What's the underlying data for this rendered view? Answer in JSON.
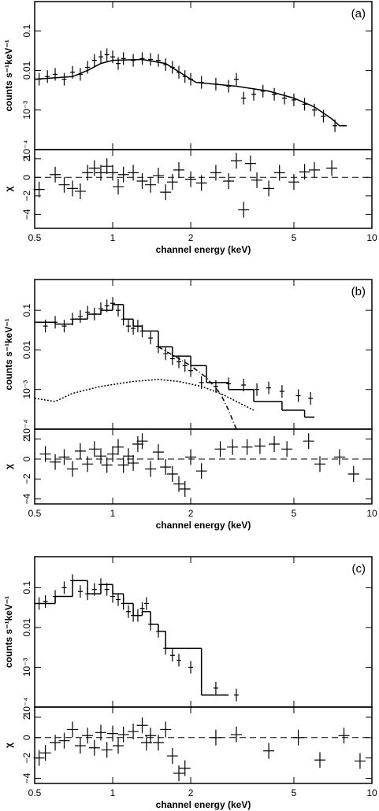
{
  "chart_data": [
    {
      "type": "spectrum",
      "annotation": "(a)",
      "ylabel": "counts s⁻¹keV⁻¹",
      "xlog": true,
      "ylog": true,
      "xlim": [
        0.5,
        10
      ],
      "ylim": [
        0.0001,
        0.55
      ],
      "xticks": [
        0.5,
        1,
        2,
        5,
        10
      ],
      "yticks": [
        {
          "value": 0.0001,
          "label": "10⁻⁴"
        },
        {
          "value": 0.001,
          "label": "10⁻³"
        },
        0.01,
        0.1
      ],
      "series": [
        {
          "style": "points",
          "color": "#000000",
          "x": [
            0.52,
            0.56,
            0.6,
            0.65,
            0.7,
            0.75,
            0.8,
            0.85,
            0.9,
            0.95,
            1.0,
            1.05,
            1.1,
            1.2,
            1.3,
            1.4,
            1.5,
            1.6,
            1.7,
            1.8,
            1.9,
            2.0,
            2.2,
            2.5,
            2.8,
            3.0,
            3.2,
            3.5,
            3.8,
            4.2,
            4.6,
            5.0,
            5.5,
            6.0,
            6.5,
            7.2
          ],
          "values": [
            0.006,
            0.007,
            0.008,
            0.006,
            0.009,
            0.008,
            0.012,
            0.018,
            0.022,
            0.025,
            0.022,
            0.015,
            0.02,
            0.018,
            0.02,
            0.019,
            0.018,
            0.014,
            0.012,
            0.009,
            0.007,
            0.006,
            0.005,
            0.0045,
            0.004,
            0.006,
            0.002,
            0.0025,
            0.003,
            0.0025,
            0.002,
            0.0018,
            0.0014,
            0.001,
            0.0007,
            0.0004
          ]
        },
        {
          "style": "line",
          "color": "#000000",
          "x": [
            0.5,
            0.7,
            0.8,
            0.9,
            1.0,
            1.3,
            1.6,
            2.0,
            2.1,
            3,
            4,
            5,
            6,
            7,
            7.5,
            8
          ],
          "values": [
            0.006,
            0.007,
            0.01,
            0.015,
            0.018,
            0.019,
            0.015,
            0.006,
            0.005,
            0.004,
            0.003,
            0.002,
            0.0012,
            0.0006,
            0.0004,
            0.0004
          ]
        }
      ]
    },
    {
      "type": "residual",
      "ylabel": "χ",
      "xlabel": "channel energy (keV)",
      "xlog": true,
      "ylog": false,
      "zero_line": true,
      "xlim": [
        0.5,
        10
      ],
      "ylim": [
        -5.5,
        3
      ],
      "xticks": [
        0.5,
        1,
        2,
        5,
        10
      ],
      "yticks": [
        {
          "value": -4,
          "label": "−4"
        },
        {
          "value": -2,
          "label": "−2"
        },
        0,
        2
      ],
      "series": [
        {
          "style": "crosses",
          "color": "#000000",
          "x": [
            0.52,
            0.6,
            0.65,
            0.7,
            0.75,
            0.8,
            0.85,
            0.9,
            0.95,
            1.0,
            1.05,
            1.1,
            1.2,
            1.3,
            1.4,
            1.5,
            1.6,
            1.7,
            1.8,
            2.0,
            2.2,
            2.5,
            2.8,
            3.0,
            3.2,
            3.4,
            3.6,
            4.0,
            4.4,
            5.0,
            5.5,
            6.0,
            7.0
          ],
          "values": [
            -1.3,
            0.3,
            -0.8,
            -1.2,
            -1.5,
            0.5,
            1.0,
            0.5,
            1.2,
            0.5,
            -1.0,
            0.3,
            0.5,
            -0.4,
            -0.8,
            0.2,
            -1.6,
            -0.5,
            0.8,
            -0.2,
            -0.6,
            0.5,
            -0.4,
            1.8,
            -3.5,
            1.5,
            -0.3,
            -1.2,
            0.5,
            -0.5,
            0.6,
            0.8,
            1.0
          ]
        }
      ]
    },
    {
      "type": "spectrum",
      "annotation": "(b)",
      "ylabel": "counts s⁻¹keV⁻¹",
      "xlog": true,
      "ylog": true,
      "xlim": [
        0.5,
        10
      ],
      "ylim": [
        0.0001,
        0.6
      ],
      "xticks": [
        0.5,
        1,
        2,
        5,
        10
      ],
      "yticks": [
        {
          "value": 0.0001,
          "label": "10⁻⁴"
        },
        {
          "value": 0.001,
          "label": "10⁻³"
        },
        0.01,
        0.1
      ],
      "series": [
        {
          "style": "points",
          "color": "#000000",
          "x": [
            0.55,
            0.6,
            0.65,
            0.7,
            0.75,
            0.8,
            0.85,
            0.9,
            0.95,
            1.0,
            1.05,
            1.1,
            1.15,
            1.2,
            1.25,
            1.3,
            1.4,
            1.5,
            1.6,
            1.7,
            1.8,
            1.9,
            2.0,
            2.2,
            2.5,
            2.8,
            3.2,
            3.6,
            4.0,
            4.5,
            5.2,
            5.8
          ],
          "values": [
            0.04,
            0.05,
            0.04,
            0.06,
            0.07,
            0.09,
            0.08,
            0.11,
            0.13,
            0.15,
            0.1,
            0.06,
            0.04,
            0.035,
            0.04,
            0.03,
            0.02,
            0.012,
            0.008,
            0.006,
            0.005,
            0.004,
            0.003,
            0.0015,
            0.0012,
            0.0014,
            0.0013,
            0.001,
            0.0011,
            0.0009,
            0.0007,
            0.0006
          ]
        },
        {
          "style": "step",
          "color": "#000000",
          "bins": [
            0.5,
            0.6,
            0.7,
            0.8,
            0.9,
            1.0,
            1.1,
            1.2,
            1.3,
            1.5,
            1.7,
            2.0,
            2.3,
            2.8,
            3.5,
            4.5,
            5.5,
            6.0
          ],
          "values": [
            0.05,
            0.045,
            0.06,
            0.08,
            0.1,
            0.14,
            0.06,
            0.04,
            0.03,
            0.012,
            0.007,
            0.004,
            0.0015,
            0.001,
            0.0005,
            0.0003,
            0.0002
          ]
        },
        {
          "style": "dotted",
          "color": "#000000",
          "x": [
            0.5,
            0.6,
            0.7,
            0.9,
            1.2,
            1.5,
            1.8,
            2.2,
            2.6,
            3.0,
            3.5
          ],
          "values": [
            0.0006,
            0.0005,
            0.0008,
            0.0012,
            0.0016,
            0.0018,
            0.0016,
            0.0012,
            0.0008,
            0.0005,
            0.0003
          ]
        },
        {
          "style": "dashdot",
          "color": "#000000",
          "x": [
            1.5,
            1.8,
            2.0,
            2.3,
            2.6,
            2.8,
            3.0
          ],
          "values": [
            0.012,
            0.006,
            0.004,
            0.002,
            0.0008,
            0.0003,
            0.0001
          ]
        }
      ]
    },
    {
      "type": "residual",
      "ylabel": "χ",
      "xlabel": "channel energy (keV)",
      "xlog": true,
      "ylog": false,
      "zero_line": true,
      "xlim": [
        0.5,
        10
      ],
      "ylim": [
        -4.5,
        3
      ],
      "xticks": [
        0.5,
        1,
        2,
        5,
        10
      ],
      "yticks": [
        {
          "value": -4,
          "label": "−4"
        },
        {
          "value": -2,
          "label": "−2"
        },
        0,
        2
      ],
      "series": [
        {
          "style": "crosses",
          "color": "#000000",
          "x": [
            0.55,
            0.6,
            0.65,
            0.7,
            0.75,
            0.8,
            0.85,
            0.9,
            0.95,
            1.0,
            1.05,
            1.1,
            1.15,
            1.2,
            1.25,
            1.3,
            1.4,
            1.5,
            1.6,
            1.7,
            1.8,
            1.9,
            2.0,
            2.2,
            2.6,
            2.9,
            3.3,
            3.7,
            4.2,
            4.7,
            5.7,
            6.3,
            7.5,
            8.5
          ],
          "values": [
            0.5,
            -0.3,
            0.2,
            -1.0,
            0.8,
            -0.5,
            1.0,
            0.3,
            -0.6,
            0.5,
            1.2,
            -0.6,
            0.3,
            -0.4,
            1.5,
            1.8,
            -1.0,
            0.7,
            -0.8,
            -1.5,
            -2.5,
            -3.0,
            0.2,
            -1.2,
            1.0,
            1.2,
            1.2,
            1.3,
            1.5,
            1.0,
            1.8,
            -0.5,
            0.2,
            -1.5
          ]
        }
      ]
    },
    {
      "type": "spectrum",
      "annotation": "(c)",
      "ylabel": "counts s⁻¹keV⁻¹",
      "xlog": true,
      "ylog": true,
      "xlim": [
        0.5,
        10
      ],
      "ylim": [
        0.0001,
        0.6
      ],
      "xticks": [
        0.5,
        1,
        2,
        5,
        10
      ],
      "yticks": [
        {
          "value": 0.0001,
          "label": "10⁻⁴"
        },
        {
          "value": 0.001,
          "label": "10⁻³"
        },
        0.01,
        0.1
      ],
      "series": [
        {
          "style": "points",
          "color": "#000000",
          "x": [
            0.52,
            0.55,
            0.6,
            0.65,
            0.7,
            0.75,
            0.8,
            0.85,
            0.9,
            0.95,
            1.0,
            1.05,
            1.1,
            1.15,
            1.2,
            1.25,
            1.3,
            1.35,
            1.4,
            1.5,
            1.6,
            1.7,
            1.8,
            2.0,
            2.5,
            3.0
          ],
          "values": [
            0.04,
            0.045,
            0.06,
            0.1,
            0.15,
            0.08,
            0.07,
            0.09,
            0.12,
            0.09,
            0.06,
            0.05,
            0.04,
            0.025,
            0.02,
            0.02,
            0.03,
            0.04,
            0.012,
            0.008,
            0.003,
            0.002,
            0.0015,
            0.001,
            0.0003,
            0.0002
          ]
        },
        {
          "style": "step",
          "color": "#000000",
          "bins": [
            0.5,
            0.6,
            0.7,
            0.8,
            0.9,
            1.0,
            1.1,
            1.2,
            1.3,
            1.4,
            1.5,
            1.6,
            1.9,
            2.2,
            2.6,
            2.8
          ],
          "values": [
            0.04,
            0.06,
            0.15,
            0.07,
            0.12,
            0.07,
            0.04,
            0.02,
            0.025,
            0.012,
            0.008,
            0.003,
            0.003,
            0.0002,
            0.0002
          ]
        }
      ]
    },
    {
      "type": "residual",
      "ylabel": "χ",
      "xlabel": "channel energy (keV)",
      "xlog": true,
      "ylog": false,
      "zero_line": true,
      "xlim": [
        0.5,
        10
      ],
      "ylim": [
        -4.5,
        3
      ],
      "xticks": [
        0.5,
        1,
        2,
        5,
        10
      ],
      "yticks": [
        {
          "value": -4,
          "label": "−4"
        },
        {
          "value": -2,
          "label": "−2"
        },
        0,
        2
      ],
      "series": [
        {
          "style": "crosses",
          "color": "#000000",
          "x": [
            0.52,
            0.55,
            0.6,
            0.65,
            0.7,
            0.75,
            0.8,
            0.85,
            0.9,
            0.95,
            1.0,
            1.05,
            1.1,
            1.2,
            1.3,
            1.35,
            1.4,
            1.5,
            1.6,
            1.7,
            1.8,
            1.9,
            2.5,
            3.0,
            4.0,
            5.2,
            6.3,
            7.8,
            9.0
          ],
          "values": [
            -2.0,
            -1.5,
            -0.5,
            -0.3,
            0.8,
            -0.8,
            0.2,
            -1.0,
            0.5,
            -1.2,
            0.4,
            -0.8,
            0.3,
            0.6,
            1.2,
            -0.5,
            0.2,
            -0.5,
            0.8,
            -1.8,
            -3.5,
            -3.0,
            0.0,
            0.3,
            -1.3,
            0.0,
            -2.2,
            0.2,
            -2.3
          ]
        }
      ]
    }
  ]
}
